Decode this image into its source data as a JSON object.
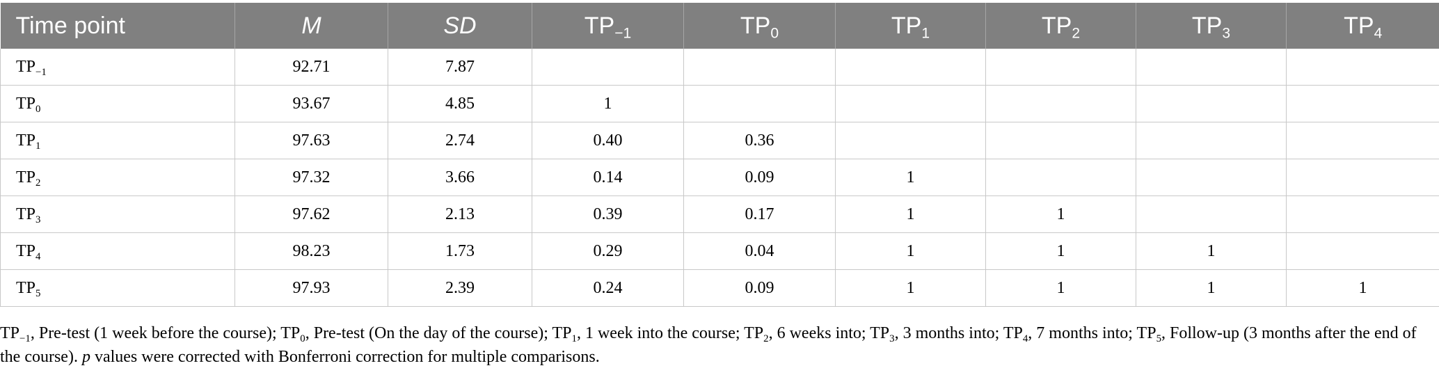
{
  "table": {
    "headers": [
      {
        "base": "Time point",
        "sub": ""
      },
      {
        "base": "M",
        "sub": ""
      },
      {
        "base": "SD",
        "sub": ""
      },
      {
        "base": "TP",
        "sub": "−1"
      },
      {
        "base": "TP",
        "sub": "0"
      },
      {
        "base": "TP",
        "sub": "1"
      },
      {
        "base": "TP",
        "sub": "2"
      },
      {
        "base": "TP",
        "sub": "3"
      },
      {
        "base": "TP",
        "sub": "4"
      }
    ],
    "rows": [
      {
        "tp": "TP",
        "sub": "−1",
        "cells": [
          "92.71",
          "7.87",
          "",
          "",
          "",
          "",
          "",
          ""
        ]
      },
      {
        "tp": "TP",
        "sub": "0",
        "cells": [
          "93.67",
          "4.85",
          "1",
          "",
          "",
          "",
          "",
          ""
        ]
      },
      {
        "tp": "TP",
        "sub": "1",
        "cells": [
          "97.63",
          "2.74",
          "0.40",
          "0.36",
          "",
          "",
          "",
          ""
        ]
      },
      {
        "tp": "TP",
        "sub": "2",
        "cells": [
          "97.32",
          "3.66",
          "0.14",
          "0.09",
          "1",
          "",
          "",
          ""
        ]
      },
      {
        "tp": "TP",
        "sub": "3",
        "cells": [
          "97.62",
          "2.13",
          "0.39",
          "0.17",
          "1",
          "1",
          "",
          ""
        ]
      },
      {
        "tp": "TP",
        "sub": "4",
        "cells": [
          "98.23",
          "1.73",
          "0.29",
          "0.04",
          "1",
          "1",
          "1",
          ""
        ]
      },
      {
        "tp": "TP",
        "sub": "5",
        "cells": [
          "97.93",
          "2.39",
          "0.24",
          "0.09",
          "1",
          "1",
          "1",
          "1"
        ]
      }
    ]
  },
  "footnote": {
    "tp_m1_sub": "−1",
    "tp_m1_text": ", Pre-test (1 week before the course); ",
    "tp0_sub": "0",
    "tp0_text": ", Pre-test (On the day of the course); ",
    "tp1_sub": "1",
    "tp1_text": ", 1 week into the course; ",
    "tp2_sub": "2",
    "tp2_text": ", 6 weeks into; ",
    "tp3_sub": "3",
    "tp3_text": ", 3 months into; ",
    "tp4_sub": "4",
    "tp4_text": ", 7 months into; ",
    "tp5_sub": "5",
    "tp5_text": ", Follow-up (3 months after the end of the course). ",
    "p": "p",
    "tail": " values were corrected with Bonferroni correction for multiple comparisons.",
    "tp": "TP"
  }
}
